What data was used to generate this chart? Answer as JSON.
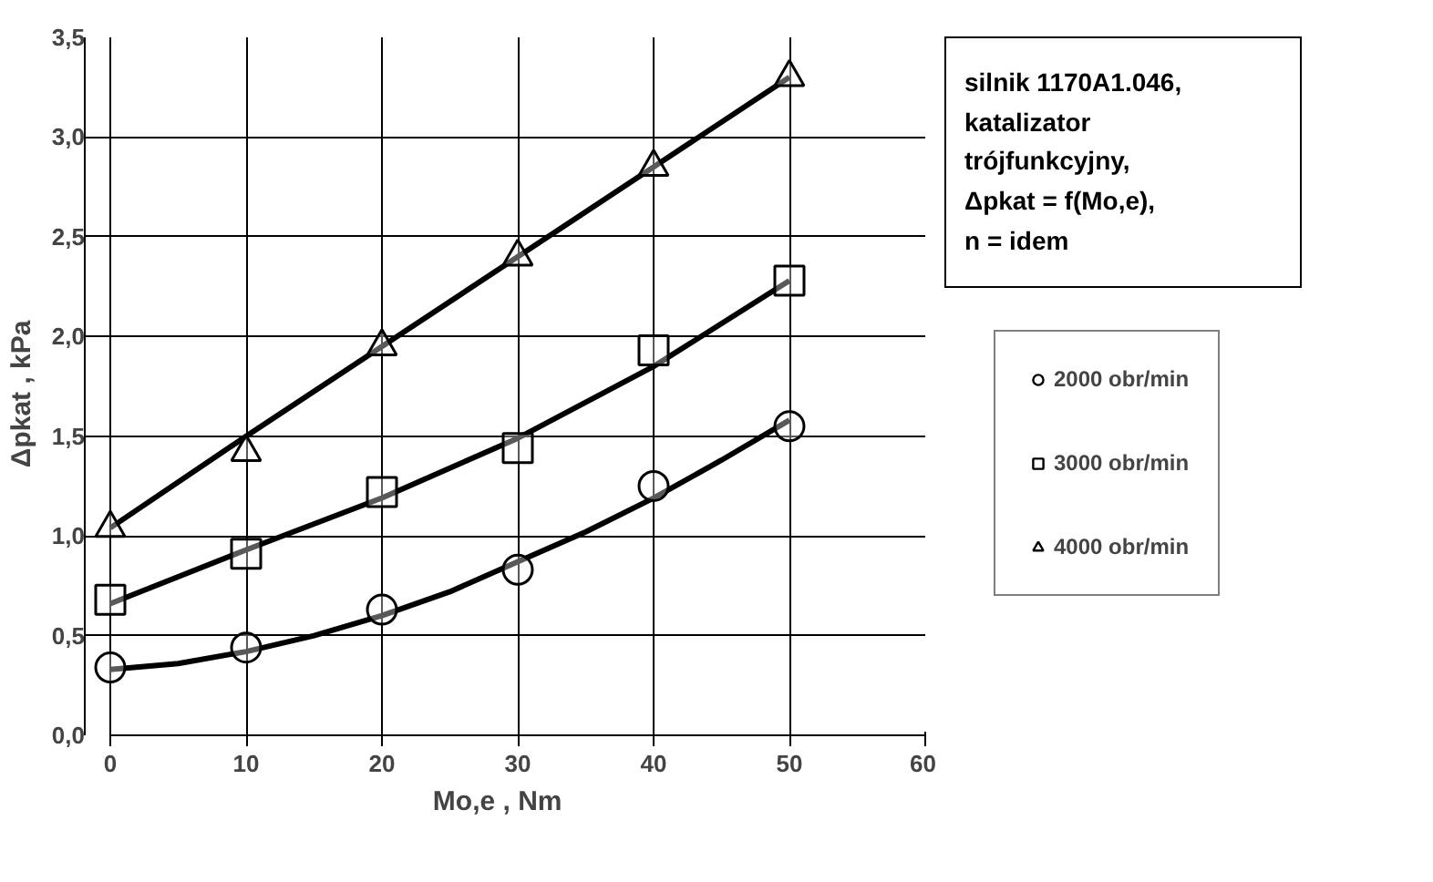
{
  "chart_data": {
    "type": "scatter",
    "xlabel": "Mo,e ,   Nm",
    "ylabel": "Δpkat ,   kPa",
    "annotations": [
      "silnik 1170A1.046,\nkatalizator\ntrójfunkcyjny,\nΔpkat = f(Mo,e),\nn = idem"
    ],
    "x": [
      0,
      10,
      20,
      30,
      40,
      50
    ],
    "series": [
      {
        "name": "2000 obr/min",
        "color": "#000000",
        "marker": "circle",
        "values": [
          0.34,
          0.44,
          0.63,
          0.83,
          1.25,
          1.55
        ]
      },
      {
        "name": "3000 obr/min",
        "color": "#000000",
        "marker": "square",
        "values": [
          0.68,
          0.91,
          1.22,
          1.44,
          1.93,
          2.28
        ]
      },
      {
        "name": "4000 obr/min",
        "color": "#000000",
        "marker": "triangle",
        "values": [
          1.04,
          1.42,
          1.95,
          2.4,
          2.85,
          3.3
        ]
      },
      {
        "type": "line",
        "color": "#000000",
        "x": [
          0,
          5,
          10,
          15,
          20,
          25,
          30,
          35,
          40,
          45,
          50
        ],
        "values": [
          0.33,
          0.36,
          0.42,
          0.5,
          0.6,
          0.72,
          0.87,
          1.02,
          1.19,
          1.38,
          1.58
        ]
      },
      {
        "type": "line",
        "color": "#000000",
        "x": [
          0,
          10,
          20,
          30,
          40,
          50
        ],
        "values": [
          0.66,
          0.93,
          1.19,
          1.49,
          1.85,
          2.28
        ]
      },
      {
        "type": "line",
        "color": "#000000",
        "x": [
          0,
          10,
          20,
          30,
          40,
          50
        ],
        "values": [
          1.04,
          1.5,
          1.95,
          2.4,
          2.85,
          3.3
        ]
      }
    ],
    "xlim": [
      0,
      60
    ],
    "xticks": [
      0,
      10,
      20,
      30,
      40,
      50,
      60
    ],
    "ylim": [
      0,
      3.5
    ],
    "yticks": [
      {
        "value": 0,
        "label": "0,0"
      },
      {
        "value": 0.5,
        "label": "0,5"
      },
      {
        "value": 1,
        "label": "1,0"
      },
      {
        "value": 1.5,
        "label": "1,5"
      },
      {
        "value": 2,
        "label": "2,0"
      },
      {
        "value": 2.5,
        "label": "2,5"
      },
      {
        "value": 3,
        "label": "3,0"
      },
      {
        "value": 3.5,
        "label": "3,5"
      }
    ],
    "grid": true,
    "legend": "right",
    "line_style": "solid"
  }
}
